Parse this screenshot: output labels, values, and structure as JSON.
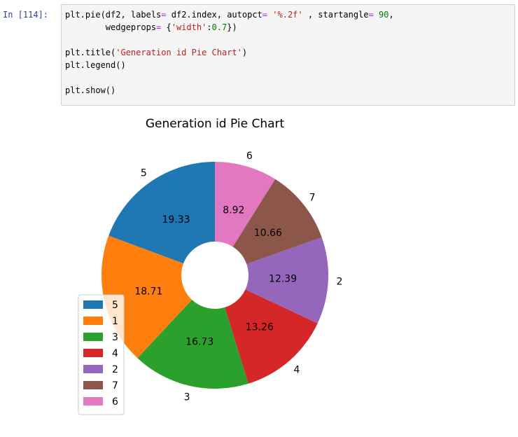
{
  "cell": {
    "prompt": "In [114]:",
    "code_lines": [
      "plt.pie(df2, labels= df2.index, autopct= '%.2f' , startangle= 90,",
      "        wedgeprops= {'width':0.7})",
      "",
      "plt.title('Generation id Pie Chart')",
      "plt.legend()",
      "",
      "plt.show()"
    ]
  },
  "chart_data": {
    "type": "pie",
    "title": "Generation id Pie Chart",
    "donut": true,
    "startangle": 90,
    "slices": [
      {
        "label": "5",
        "value": 19.33,
        "display": "19.33",
        "color": "#1f77b4"
      },
      {
        "label": "1",
        "value": 18.71,
        "display": "18.71",
        "color": "#ff7f0e"
      },
      {
        "label": "3",
        "value": 16.73,
        "display": "16.73",
        "color": "#2ca02c"
      },
      {
        "label": "4",
        "value": 13.26,
        "display": "13.26",
        "color": "#d62728"
      },
      {
        "label": "2",
        "value": 12.39,
        "display": "12.39",
        "color": "#9467bd"
      },
      {
        "label": "7",
        "value": 10.66,
        "display": "10.66",
        "color": "#8c564b"
      },
      {
        "label": "6",
        "value": 8.92,
        "display": "8.92",
        "color": "#e377c2"
      }
    ],
    "legend": {
      "placement": "lower-left",
      "entries": [
        "5",
        "1",
        "3",
        "4",
        "2",
        "7",
        "6"
      ]
    }
  }
}
